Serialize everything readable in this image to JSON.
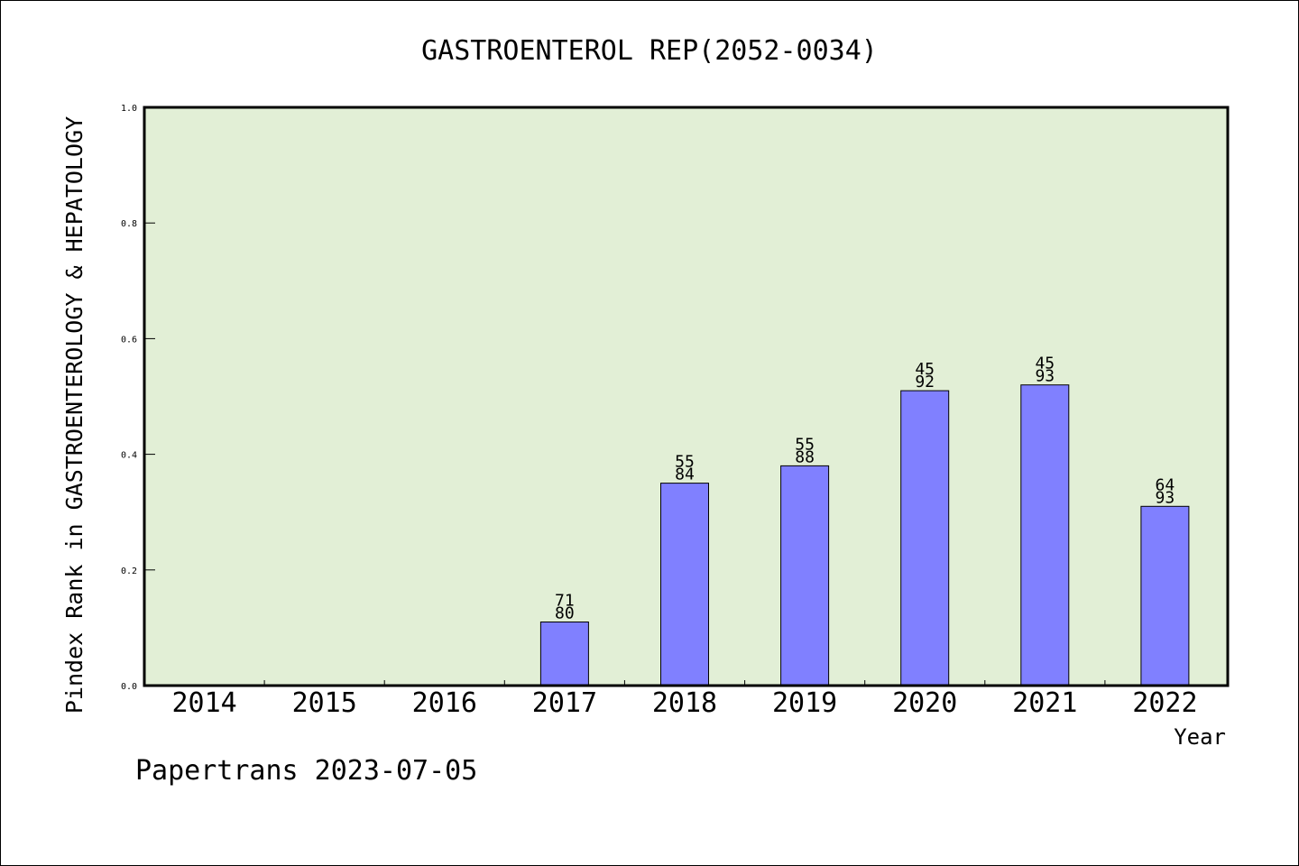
{
  "chart_data": {
    "type": "bar",
    "title": "GASTROENTEROL REP(2052-0034)",
    "xlabel": "Year",
    "ylabel": "Pindex Rank in GASTROENTEROLOGY & HEPATOLOGY",
    "categories": [
      "2014",
      "2015",
      "2016",
      "2017",
      "2018",
      "2019",
      "2020",
      "2021",
      "2022"
    ],
    "values": [
      0,
      0,
      0,
      0.11,
      0.35,
      0.38,
      0.51,
      0.52,
      0.31
    ],
    "bar_labels": [
      null,
      null,
      null,
      [
        "71",
        "80"
      ],
      [
        "55",
        "84"
      ],
      [
        "55",
        "88"
      ],
      [
        "45",
        "92"
      ],
      [
        "45",
        "93"
      ],
      [
        "64",
        "93"
      ]
    ],
    "yticks": [
      "0.0",
      "0.2",
      "0.4",
      "0.6",
      "0.8",
      "1.0"
    ],
    "ylim": [
      0,
      1
    ],
    "grid": false,
    "colors": {
      "plot_bg": "#e2efd6",
      "bar": "#8080ff",
      "bar_edge": "#000000"
    },
    "credit": "Papertrans 2023-07-05"
  }
}
